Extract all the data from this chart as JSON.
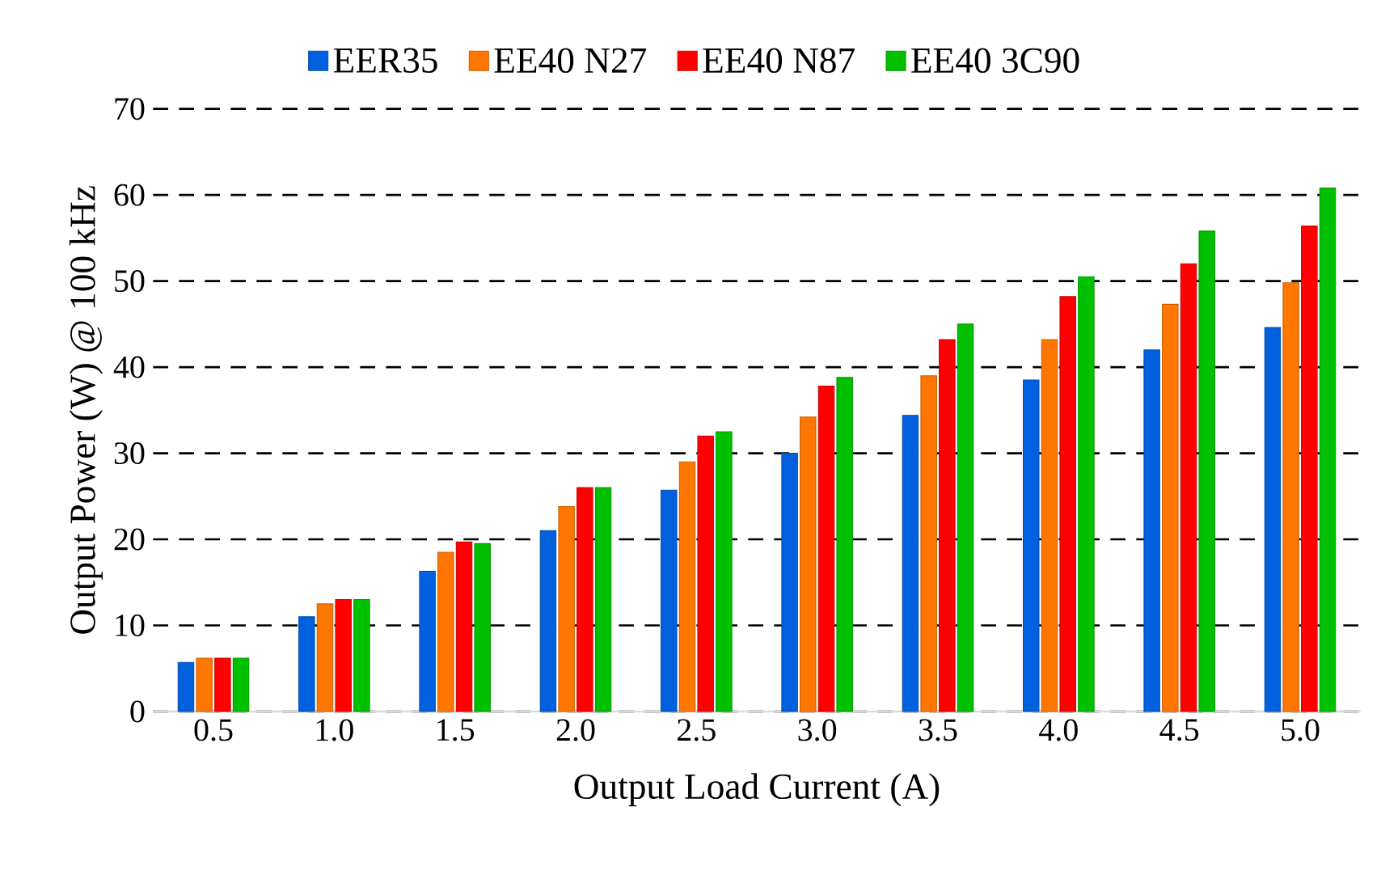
{
  "chart_data": {
    "type": "bar",
    "xlabel": "Output Load Current (A)",
    "ylabel": "Output Power (W) @ 100 kHz",
    "categories": [
      "0.5",
      "1.0",
      "1.5",
      "2.0",
      "2.5",
      "3.0",
      "3.5",
      "4.0",
      "4.5",
      "5.0"
    ],
    "series": [
      {
        "name": "EER35",
        "color": "#0060dd",
        "values": [
          5.7,
          11,
          16.3,
          21,
          25.7,
          30,
          34.4,
          38.5,
          42,
          44.6
        ]
      },
      {
        "name": "EE40 N27",
        "color": "#ff7700",
        "values": [
          6.2,
          12.5,
          18.5,
          23.8,
          29,
          34.2,
          39,
          43.2,
          47.3,
          49.8
        ]
      },
      {
        "name": "EE40 N87",
        "color": "#ff0000",
        "values": [
          6.2,
          13,
          19.7,
          26,
          32,
          37.8,
          43.2,
          48.2,
          52,
          56.4
        ]
      },
      {
        "name": "EE40 3C90",
        "color": "#00c000",
        "values": [
          6.2,
          13,
          19.5,
          26,
          32.5,
          38.8,
          45,
          50.5,
          55.8,
          60.8
        ]
      }
    ],
    "ylim": [
      0,
      70
    ],
    "yticks": [
      0,
      10,
      20,
      30,
      40,
      50,
      60,
      70
    ],
    "grid": "y",
    "legend": "top"
  }
}
